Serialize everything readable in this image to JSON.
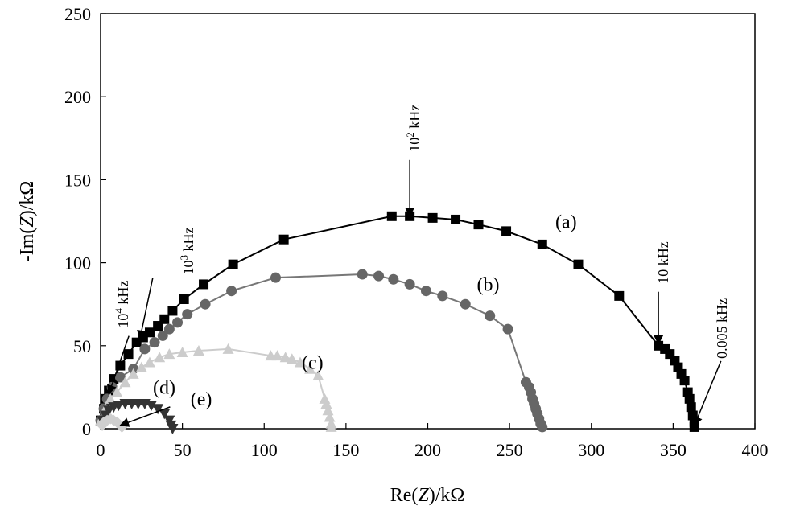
{
  "chart_data": {
    "type": "scatter",
    "title": "",
    "xlabel": {
      "pre": "Re(",
      "var": "Z",
      "post": ")/kΩ"
    },
    "ylabel": {
      "pre": "-Im(",
      "var": "Z",
      "post": ")/kΩ"
    },
    "xlim": [
      0,
      400
    ],
    "ylim": [
      0,
      250
    ],
    "xticks": [
      0,
      50,
      100,
      150,
      200,
      250,
      300,
      350,
      400
    ],
    "yticks": [
      0,
      50,
      100,
      150,
      200,
      250
    ],
    "grid": false,
    "series": [
      {
        "name": "(a)",
        "marker": "square",
        "color": "#000000",
        "line": "#000000",
        "points": [
          [
            0,
            5
          ],
          [
            2,
            12
          ],
          [
            3,
            18
          ],
          [
            5,
            23
          ],
          [
            8,
            30
          ],
          [
            12,
            38
          ],
          [
            17,
            45
          ],
          [
            22,
            52
          ],
          [
            26,
            55
          ],
          [
            30,
            58
          ],
          [
            35,
            62
          ],
          [
            39,
            66
          ],
          [
            44,
            71
          ],
          [
            51,
            78
          ],
          [
            63,
            87
          ],
          [
            81,
            99
          ],
          [
            112,
            114
          ],
          [
            178,
            128
          ],
          [
            189,
            128
          ],
          [
            203,
            127
          ],
          [
            217,
            126
          ],
          [
            231,
            123
          ],
          [
            248,
            119
          ],
          [
            270,
            111
          ],
          [
            292,
            99
          ],
          [
            317,
            80
          ],
          [
            341,
            50
          ],
          [
            345,
            48
          ],
          [
            348,
            45
          ],
          [
            351,
            41
          ],
          [
            353,
            37
          ],
          [
            355,
            33
          ],
          [
            357,
            29
          ],
          [
            359,
            22
          ],
          [
            360,
            18
          ],
          [
            361,
            13
          ],
          [
            362,
            8
          ],
          [
            363,
            4
          ],
          [
            363,
            1
          ]
        ]
      },
      {
        "name": "(b)",
        "marker": "circle",
        "color": "#666666",
        "line": "#777777",
        "points": [
          [
            0,
            5
          ],
          [
            2,
            12
          ],
          [
            4,
            18
          ],
          [
            7,
            25
          ],
          [
            12,
            31
          ],
          [
            20,
            36
          ],
          [
            27,
            48
          ],
          [
            33,
            52
          ],
          [
            38,
            56
          ],
          [
            42,
            60
          ],
          [
            47,
            64
          ],
          [
            53,
            69
          ],
          [
            64,
            75
          ],
          [
            80,
            83
          ],
          [
            107,
            91
          ],
          [
            160,
            93
          ],
          [
            170,
            92
          ],
          [
            179,
            90
          ],
          [
            189,
            87
          ],
          [
            199,
            83
          ],
          [
            209,
            80
          ],
          [
            223,
            75
          ],
          [
            238,
            68
          ],
          [
            249,
            60
          ],
          [
            260,
            28
          ],
          [
            262,
            25
          ],
          [
            263,
            22
          ],
          [
            264,
            18
          ],
          [
            265,
            15
          ],
          [
            266,
            12
          ],
          [
            267,
            9
          ],
          [
            268,
            6
          ],
          [
            269,
            3
          ],
          [
            270,
            1
          ]
        ]
      },
      {
        "name": "(c)",
        "marker": "triangle",
        "color": "#cccccc",
        "line": "#cccccc",
        "points": [
          [
            0,
            5
          ],
          [
            3,
            12
          ],
          [
            6,
            18
          ],
          [
            10,
            22
          ],
          [
            15,
            28
          ],
          [
            20,
            33
          ],
          [
            25,
            37
          ],
          [
            30,
            40
          ],
          [
            36,
            43
          ],
          [
            42,
            45
          ],
          [
            50,
            46
          ],
          [
            60,
            47
          ],
          [
            78,
            48
          ],
          [
            104,
            44
          ],
          [
            108,
            44
          ],
          [
            113,
            43
          ],
          [
            117,
            42
          ],
          [
            122,
            40
          ],
          [
            128,
            36
          ],
          [
            133,
            32
          ],
          [
            137,
            18
          ],
          [
            138,
            15
          ],
          [
            139,
            11
          ],
          [
            140,
            7
          ],
          [
            141,
            3
          ],
          [
            141,
            1
          ]
        ]
      },
      {
        "name": "(d)",
        "marker": "triangle-down",
        "color": "#333333",
        "line": "#333333",
        "points": [
          [
            1,
            5
          ],
          [
            3,
            8
          ],
          [
            5,
            11
          ],
          [
            8,
            13
          ],
          [
            11,
            14
          ],
          [
            15,
            15
          ],
          [
            19,
            15
          ],
          [
            23,
            15
          ],
          [
            27,
            15
          ],
          [
            31,
            14
          ],
          [
            35,
            12
          ],
          [
            39,
            9
          ],
          [
            42,
            5
          ],
          [
            43,
            2
          ],
          [
            44,
            0
          ]
        ]
      },
      {
        "name": "(e)",
        "marker": "diamond",
        "color": "#cfcfcf",
        "line": "#cfcfcf",
        "points": [
          [
            1,
            2
          ],
          [
            2,
            4
          ],
          [
            4,
            5
          ],
          [
            6,
            6
          ],
          [
            8,
            5
          ],
          [
            10,
            4
          ],
          [
            12,
            2
          ],
          [
            13,
            1
          ]
        ]
      }
    ],
    "series_labels": [
      {
        "text": "(a)",
        "x": 278,
        "y": 121
      },
      {
        "text": "(b)",
        "x": 230,
        "y": 83
      },
      {
        "text": "(c)",
        "x": 123,
        "y": 36
      },
      {
        "text": "(d)",
        "x": 32,
        "y": 21
      },
      {
        "text": "(e)",
        "x": 55,
        "y": 14
      }
    ],
    "annotations": [
      {
        "base": "10",
        "sup": "4",
        "unit": " kHz",
        "x": 5,
        "y": 21,
        "rotate": true
      },
      {
        "base": "10",
        "sup": "3",
        "unit": " kHz",
        "x": 24,
        "y": 54,
        "rotate": true
      },
      {
        "base": "10",
        "sup": "2",
        "unit": " kHz",
        "x": 189,
        "y": 128,
        "rotate": true
      },
      {
        "base": "10",
        "sup": "",
        "unit": " kHz",
        "x": 341,
        "y": 51,
        "rotate": true
      },
      {
        "base": "0.005",
        "sup": "",
        "unit": " kHz",
        "x": 363,
        "y": 2,
        "rotate": true
      },
      {
        "base": "",
        "sup": "",
        "unit": "",
        "x": 12,
        "y": 2,
        "rotate": false
      }
    ]
  }
}
